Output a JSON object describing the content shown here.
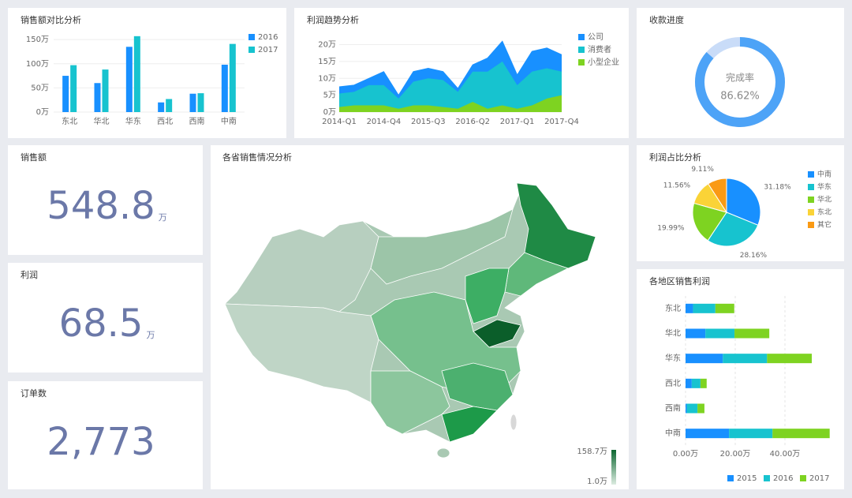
{
  "chart_data": [
    {
      "type": "bar",
      "title": "销售额对比分析",
      "categories": [
        "东北",
        "华北",
        "华东",
        "西北",
        "西南",
        "中南"
      ],
      "series": [
        {
          "name": "2016",
          "color": "#1890ff",
          "values": [
            75,
            60,
            135,
            20,
            38,
            98
          ]
        },
        {
          "name": "2017",
          "color": "#17c3cf",
          "values": [
            97,
            88,
            157,
            27,
            39,
            141
          ]
        }
      ],
      "ylim": [
        0,
        160
      ],
      "yticks": [
        {
          "value": 0,
          "label": "0万"
        },
        {
          "value": 50,
          "label": "50万"
        },
        {
          "value": 100,
          "label": "100万"
        },
        {
          "value": 150,
          "label": "150万"
        }
      ],
      "grid": true,
      "legend": "right"
    },
    {
      "type": "area",
      "stacked": true,
      "title": "利润趋势分析",
      "categories": [
        "2014-Q1",
        null,
        null,
        "2014-Q4",
        null,
        null,
        "2015-Q3",
        null,
        null,
        "2016-Q2",
        null,
        null,
        "2017-Q1",
        null,
        null,
        "2017-Q4"
      ],
      "series": [
        {
          "name": "公司",
          "color": "#1890ff",
          "values": [
            2,
            2,
            2,
            4,
            1,
            3,
            3,
            2.5,
            1,
            2,
            4,
            6,
            3,
            6,
            6,
            5
          ]
        },
        {
          "name": "消费者",
          "color": "#17c3cf",
          "values": [
            4,
            4,
            6,
            6,
            3,
            7,
            8,
            8,
            5,
            9,
            11,
            13,
            7,
            10,
            9,
            7
          ]
        },
        {
          "name": "小型企业",
          "color": "#7ed321",
          "values": [
            1.5,
            2,
            2,
            2,
            1,
            2,
            2,
            1.5,
            1,
            3,
            1,
            2,
            1,
            2,
            4,
            5
          ]
        }
      ],
      "ylim": [
        0,
        22
      ],
      "yticks": [
        {
          "value": 0,
          "label": "0万"
        },
        {
          "value": 5,
          "label": "5万"
        },
        {
          "value": 10,
          "label": "10万"
        },
        {
          "value": 15,
          "label": "15万"
        },
        {
          "value": 20,
          "label": "20万"
        }
      ],
      "grid": true,
      "legend": "right"
    },
    {
      "type": "gauge",
      "title": "收款进度",
      "label": "完成率",
      "value": 86.62,
      "value_label": "86.62%",
      "color": "#4da3f7",
      "track_color": "#c9dcf8"
    },
    {
      "type": "map",
      "title": "各省销售情况分析",
      "clim": [
        1.0,
        158.7
      ],
      "cticks": [
        {
          "value": 1.0,
          "label": "1.0万"
        },
        {
          "value": 158.7,
          "label": "158.7万"
        }
      ],
      "colors": [
        "#dcece1",
        "#0b6630"
      ]
    },
    {
      "type": "pie",
      "title": "利润占比分析",
      "categories": [
        "中南",
        "华东",
        "华北",
        "东北",
        "其它"
      ],
      "values": [
        31.18,
        28.16,
        19.99,
        11.56,
        9.11
      ],
      "value_labels": [
        "31.18%",
        "28.16%",
        "19.99%",
        "11.56%",
        "9.11%"
      ],
      "colors": [
        "#1890ff",
        "#17c3cf",
        "#7ed321",
        "#fad337",
        "#fa9a14"
      ],
      "legend": "right"
    },
    {
      "type": "hbar",
      "stacked": true,
      "title": "各地区销售利润",
      "categories": [
        "东北",
        "华北",
        "华东",
        "西北",
        "西南",
        "中南"
      ],
      "series": [
        {
          "name": "2015",
          "color": "#1890ff",
          "values": [
            3,
            8,
            15,
            2.5,
            0.5,
            17.5
          ]
        },
        {
          "name": "2016",
          "color": "#17c3cf",
          "values": [
            9,
            11.7,
            17.8,
            3.5,
            4.3,
            17.5
          ]
        },
        {
          "name": "2017",
          "color": "#7ed321",
          "values": [
            7.6,
            14,
            18,
            2.5,
            2.8,
            23
          ]
        }
      ],
      "xlim": [
        0,
        60
      ],
      "xticks": [
        {
          "value": 0,
          "label": "0.00万"
        },
        {
          "value": 20,
          "label": "20.00万"
        },
        {
          "value": 40,
          "label": "40.00万"
        }
      ],
      "grid": true,
      "legend": "bottom"
    }
  ],
  "kpis": [
    {
      "title": "销售额",
      "value": 548.8,
      "unit": "万"
    },
    {
      "title": "利润",
      "value": 68.5,
      "unit": "万"
    },
    {
      "title": "订单数",
      "value": 2773,
      "value_label": "2,773"
    }
  ]
}
